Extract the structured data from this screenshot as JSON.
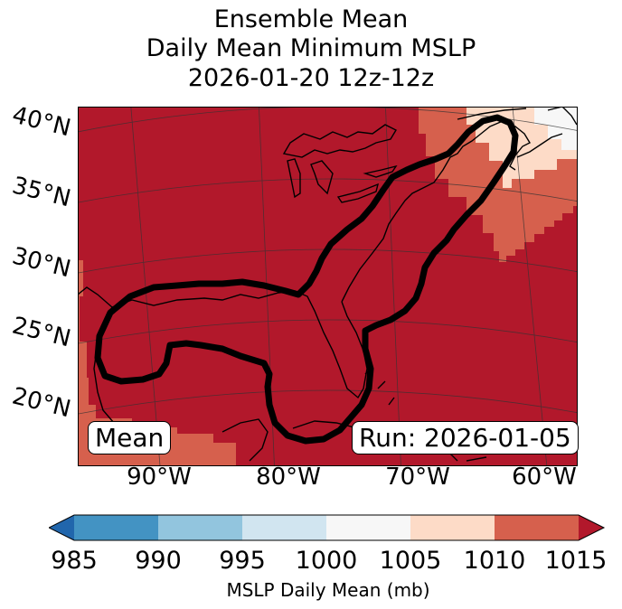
{
  "title": {
    "line1": "Ensemble Mean",
    "line2": "Daily Mean Minimum MSLP",
    "line3": "2026-01-20 12z-12z"
  },
  "map_labels": {
    "lat": [
      "40°N",
      "35°N",
      "30°N",
      "25°N",
      "20°N"
    ],
    "lon": [
      "90°W",
      "80°W",
      "70°W",
      "60°W"
    ],
    "mean_box": "Mean",
    "run_box": "Run: 2026-01-05"
  },
  "colorbar": {
    "label": "MSLP Daily Mean (mb)",
    "ticks": [
      "985",
      "990",
      "995",
      "1000",
      "1005",
      "1010",
      "1015"
    ],
    "colors": [
      "#4393c3",
      "#92c5de",
      "#d1e5f0",
      "#f7f7f7",
      "#fddbc7",
      "#d6604d"
    ],
    "under_color": "#2166ac",
    "over_color": "#b2182b"
  },
  "chart_data": {
    "type": "heatmap",
    "title": "Ensemble Mean Daily Mean Minimum MSLP 2026-01-20 12z-12z",
    "variable": "MSLP Daily Mean (mb)",
    "color_levels": [
      985,
      990,
      995,
      1000,
      1005,
      1010,
      1015
    ],
    "dominant_bin": ">1015",
    "lon_range": [
      -95,
      -60
    ],
    "lat_range": [
      18,
      42
    ],
    "contour": "highlighted region over Gulf of Mexico, Florida and US East Coast",
    "run": "2026-01-05"
  }
}
